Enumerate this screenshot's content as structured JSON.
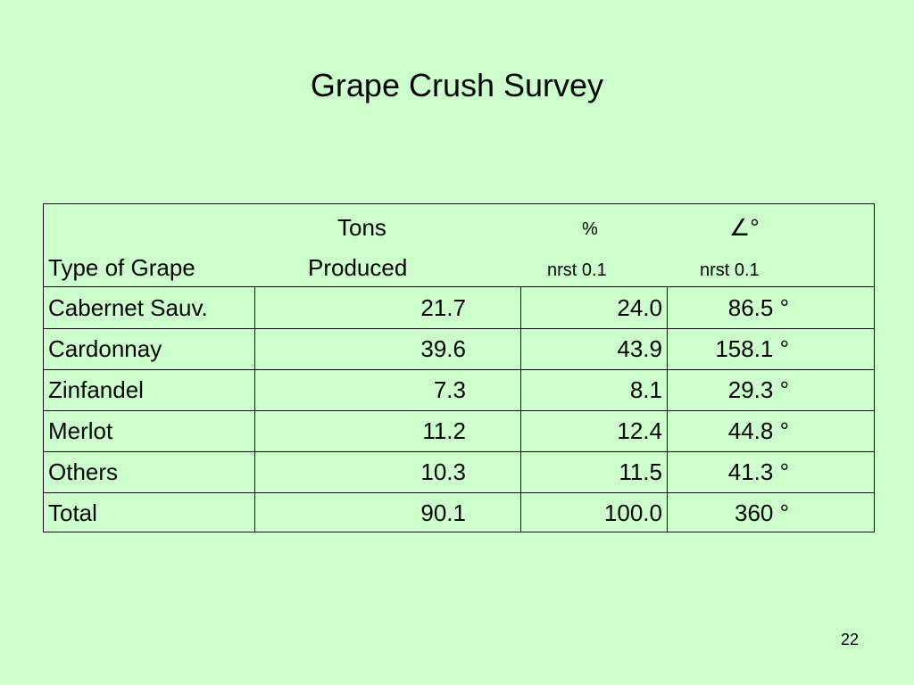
{
  "title": "Grape Crush Survey",
  "table": {
    "headers": {
      "col1": "Type of Grape",
      "col2_line1": "Tons",
      "col2_line2": "Produced",
      "col3_line1": "%",
      "col3_line2": "nrst 0.1",
      "col4_line1": "∠°",
      "col4_line2": "nrst 0.1"
    },
    "rows": [
      {
        "grape": "Cabernet Sauv.",
        "tons": "21.7",
        "percent": "24.0",
        "angle": "86.5 °"
      },
      {
        "grape": "Cardonnay",
        "tons": "39.6",
        "percent": "43.9",
        "angle": "158.1 °"
      },
      {
        "grape": "Zinfandel",
        "tons": "7.3",
        "percent": "8.1",
        "angle": "29.3 °"
      },
      {
        "grape": "Merlot",
        "tons": "11.2",
        "percent": "12.4",
        "angle": "44.8 °"
      },
      {
        "grape": "Others",
        "tons": "10.3",
        "percent": "11.5",
        "angle": "41.3 °"
      },
      {
        "grape": "Total",
        "tons": "90.1",
        "percent": "100.0",
        "angle": "360 °"
      }
    ]
  },
  "page_number": "22"
}
